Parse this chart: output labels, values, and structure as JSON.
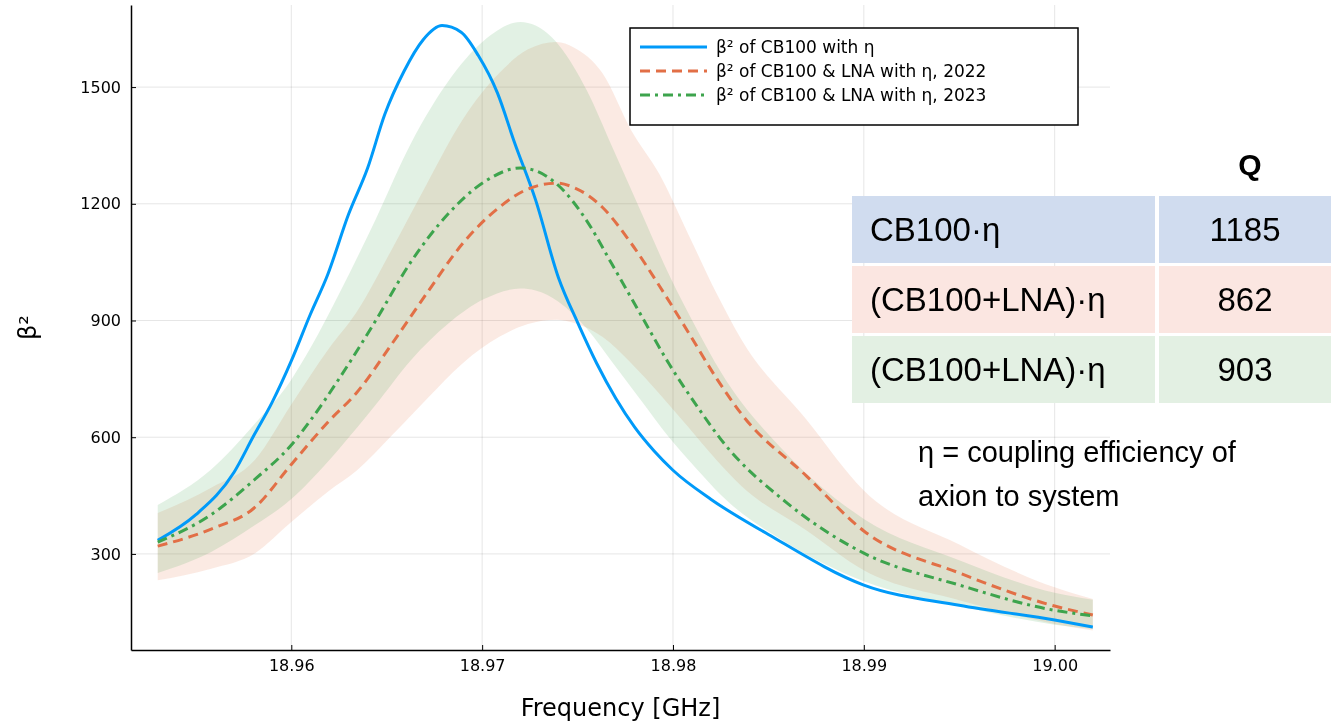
{
  "chart_data": {
    "type": "line",
    "xlabel": "Frequency [GHz]",
    "ylabel": "β²",
    "xlim": [
      18.9516,
      19.0029
    ],
    "xticks": [
      {
        "value": 18.96,
        "label": "18.96"
      },
      {
        "value": 18.97,
        "label": "18.97"
      },
      {
        "value": 18.98,
        "label": "18.98"
      },
      {
        "value": 18.99,
        "label": "18.99"
      },
      {
        "value": 19.0,
        "label": "19.00"
      }
    ],
    "ylim": [
      53,
      1711
    ],
    "yticks": [
      300,
      600,
      900,
      1200,
      1500
    ],
    "grid": true,
    "legend": "top right",
    "marker": "none",
    "series": [
      {
        "name": "β² of CB100 with η",
        "color": "#009af9",
        "line_style": "solid",
        "x": [
          18.953,
          18.955,
          18.957,
          18.958,
          18.959,
          18.96,
          18.961,
          18.9619,
          18.963,
          18.964,
          18.9649,
          18.9659,
          18.9669,
          18.9679,
          18.9689,
          18.9698,
          18.9708,
          18.9717,
          18.9728,
          18.974,
          18.975,
          18.976,
          18.977,
          18.978,
          18.979,
          18.98,
          18.982,
          18.985,
          18.99,
          18.995,
          19.0,
          19.002
        ],
        "values": [
          335,
          401,
          510,
          601,
          690,
          796,
          916,
          1017,
          1173,
          1292,
          1430,
          1540,
          1621,
          1658,
          1641,
          1581,
          1485,
          1357,
          1210,
          1010,
          895,
          790,
          700,
          625,
          565,
          515,
          440,
          350,
          220,
          168,
          130,
          112
        ]
      },
      {
        "name": "β² of CB100 & LNA with η, 2022",
        "color": "#e26f46",
        "line_style": "dashed",
        "x": [
          18.953,
          18.9558,
          18.9581,
          18.96,
          18.962,
          18.9634,
          18.9653,
          18.9671,
          18.969,
          18.9709,
          18.9724,
          18.9739,
          18.9748,
          18.9763,
          18.9778,
          18.9793,
          18.9808,
          18.9823,
          18.9836,
          18.987,
          18.99,
          18.995,
          19.0,
          19.002
        ],
        "values": [
          320,
          364,
          420,
          530,
          643,
          713,
          842,
          970,
          1099,
          1191,
          1238,
          1253,
          1242,
          1191,
          1099,
          988,
          870,
          750,
          659,
          500,
          359,
          251,
          166,
          143
        ],
        "upper": [
          405,
          470,
          542,
          684,
          830,
          920,
          1086,
          1251,
          1418,
          1536,
          1597,
          1616,
          1602,
          1536,
          1390,
          1275,
          1122,
          968,
          850,
          645,
          463,
          324,
          214,
          184
        ],
        "lower": [
          232,
          262,
          302,
          382,
          463,
          513,
          606,
          698,
          791,
          858,
          891,
          902,
          894,
          858,
          791,
          711,
          626,
          540,
          474,
          360,
          258,
          181,
          120,
          103
        ]
      },
      {
        "name": "β² of CB100 & LNA with η, 2023",
        "color": "#3da44d",
        "line_style": "dashdot",
        "x": [
          18.953,
          18.9558,
          18.9581,
          18.96,
          18.961,
          18.9625,
          18.9644,
          18.9663,
          18.9682,
          18.9701,
          18.972,
          18.9728,
          18.974,
          18.9755,
          18.9768,
          18.9783,
          18.9798,
          18.9813,
          18.9825,
          18.986,
          18.99,
          18.995,
          19.0,
          19.002
        ],
        "values": [
          330,
          401,
          492,
          580,
          643,
          750,
          898,
          1053,
          1173,
          1256,
          1292,
          1285,
          1247,
          1155,
          1045,
          916,
          788,
          677,
          595,
          430,
          302,
          220,
          155,
          141
        ],
        "upper": [
          426,
          517,
          635,
          748,
          829,
          968,
          1158,
          1358,
          1513,
          1620,
          1667,
          1658,
          1609,
          1490,
          1348,
          1182,
          1017,
          873,
          768,
          555,
          390,
          284,
          200,
          182
        ],
        "lower": [
          251,
          305,
          374,
          441,
          489,
          570,
          682,
          800,
          891,
          955,
          982,
          977,
          948,
          878,
          794,
          696,
          599,
          515,
          452,
          327,
          230,
          167,
          118,
          107
        ]
      }
    ],
    "annotations": [
      "Q",
      "CB100·η",
      "1185",
      "(CB100+LNA)·η",
      "862",
      "(CB100+LNA)·η",
      "903",
      "η = coupling efficiency of axion to system"
    ]
  }
}
